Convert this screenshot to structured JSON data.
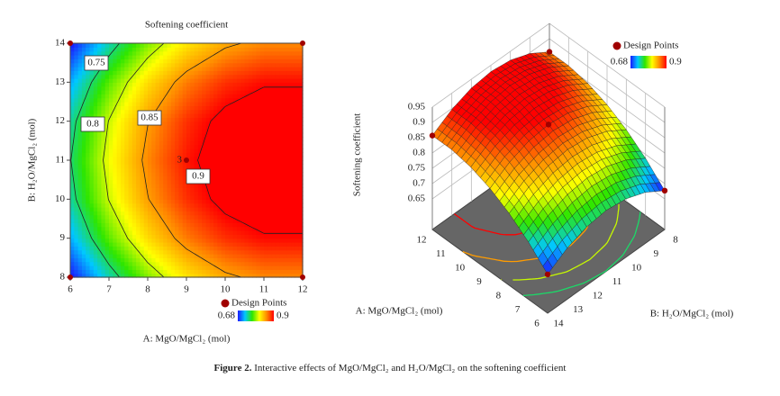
{
  "chart_data": [
    {
      "type": "contour",
      "title": "Softening coefficient",
      "x_label": "A: MgO/MgCl₂ (mol)",
      "y_label": "B: H₂O/MgCl₂ (mol)",
      "x": [
        6,
        7,
        8,
        9,
        10,
        11,
        12
      ],
      "y": [
        8,
        9,
        10,
        11,
        12,
        13,
        14
      ],
      "z": [
        [
          0.677,
          0.737,
          0.785,
          0.821,
          0.845,
          0.857,
          0.857
        ],
        [
          0.717,
          0.777,
          0.825,
          0.861,
          0.885,
          0.897,
          0.897
        ],
        [
          0.741,
          0.801,
          0.849,
          0.885,
          0.909,
          0.921,
          0.921
        ],
        [
          0.749,
          0.809,
          0.857,
          0.893,
          0.917,
          0.929,
          0.929
        ],
        [
          0.741,
          0.801,
          0.849,
          0.885,
          0.909,
          0.921,
          0.921
        ],
        [
          0.717,
          0.777,
          0.825,
          0.861,
          0.885,
          0.897,
          0.897
        ],
        [
          0.677,
          0.737,
          0.785,
          0.821,
          0.845,
          0.857,
          0.857
        ]
      ],
      "xlim": [
        6,
        12
      ],
      "ylim": [
        8,
        14
      ],
      "xticks": [
        6,
        7,
        8,
        9,
        10,
        11,
        12
      ],
      "yticks": [
        8,
        9,
        10,
        11,
        12,
        13,
        14
      ],
      "levels": [
        0.75,
        0.8,
        0.85,
        0.9
      ],
      "design_points": {
        "name": "Design Points",
        "color": "#a00000",
        "x": [
          6,
          6,
          12,
          12,
          9
        ],
        "y": [
          8,
          14,
          8,
          14,
          11
        ]
      },
      "annotations": [
        {
          "text": "3",
          "x": 9,
          "y": 11
        }
      ],
      "colorbar": {
        "range": [
          0.68,
          0.9
        ],
        "colors": [
          "#1a1aff",
          "#00c8ff",
          "#2ee600",
          "#ffff00",
          "#ff8c00",
          "#ff0000"
        ]
      }
    },
    {
      "type": "surface",
      "z_label": "Softening coefficient",
      "x_label": "A: MgO/MgCl₂ (mol)",
      "y_label": "B: H₂O/MgCl₂ (mol)",
      "x": [
        6,
        7,
        8,
        9,
        10,
        11,
        12
      ],
      "y": [
        8,
        9,
        10,
        11,
        12,
        13,
        14
      ],
      "z": [
        [
          0.677,
          0.737,
          0.785,
          0.821,
          0.845,
          0.857,
          0.857
        ],
        [
          0.717,
          0.777,
          0.825,
          0.861,
          0.885,
          0.897,
          0.897
        ],
        [
          0.741,
          0.801,
          0.849,
          0.885,
          0.909,
          0.921,
          0.921
        ],
        [
          0.749,
          0.809,
          0.857,
          0.893,
          0.917,
          0.929,
          0.929
        ],
        [
          0.741,
          0.801,
          0.849,
          0.885,
          0.909,
          0.921,
          0.921
        ],
        [
          0.717,
          0.777,
          0.825,
          0.861,
          0.885,
          0.897,
          0.897
        ],
        [
          0.677,
          0.737,
          0.785,
          0.821,
          0.845,
          0.857,
          0.857
        ]
      ],
      "xlim": [
        6,
        12
      ],
      "ylim": [
        8,
        14
      ],
      "xticks": [
        6,
        7,
        8,
        9,
        10,
        11,
        12
      ],
      "yticks": [
        8,
        9,
        10,
        11,
        12,
        13,
        14
      ],
      "zticks": [
        0.65,
        0.7,
        0.75,
        0.8,
        0.85,
        0.9,
        0.95
      ],
      "levels": [
        0.75,
        0.8,
        0.85,
        0.9
      ],
      "design_points": {
        "name": "Design Points",
        "color": "#a00000",
        "x": [
          6,
          6,
          12,
          12,
          9
        ],
        "y": [
          8,
          14,
          8,
          14,
          11
        ]
      },
      "colorbar": {
        "range": [
          0.68,
          0.9
        ],
        "colors": [
          "#1a1aff",
          "#00c8ff",
          "#2ee600",
          "#ffff00",
          "#ff8c00",
          "#ff0000"
        ]
      }
    }
  ],
  "caption": {
    "label": "Figure 2.",
    "text": "Interactive effects of MgO/MgCl₂ and H₂O/MgCl₂ on the softening coefficient"
  }
}
